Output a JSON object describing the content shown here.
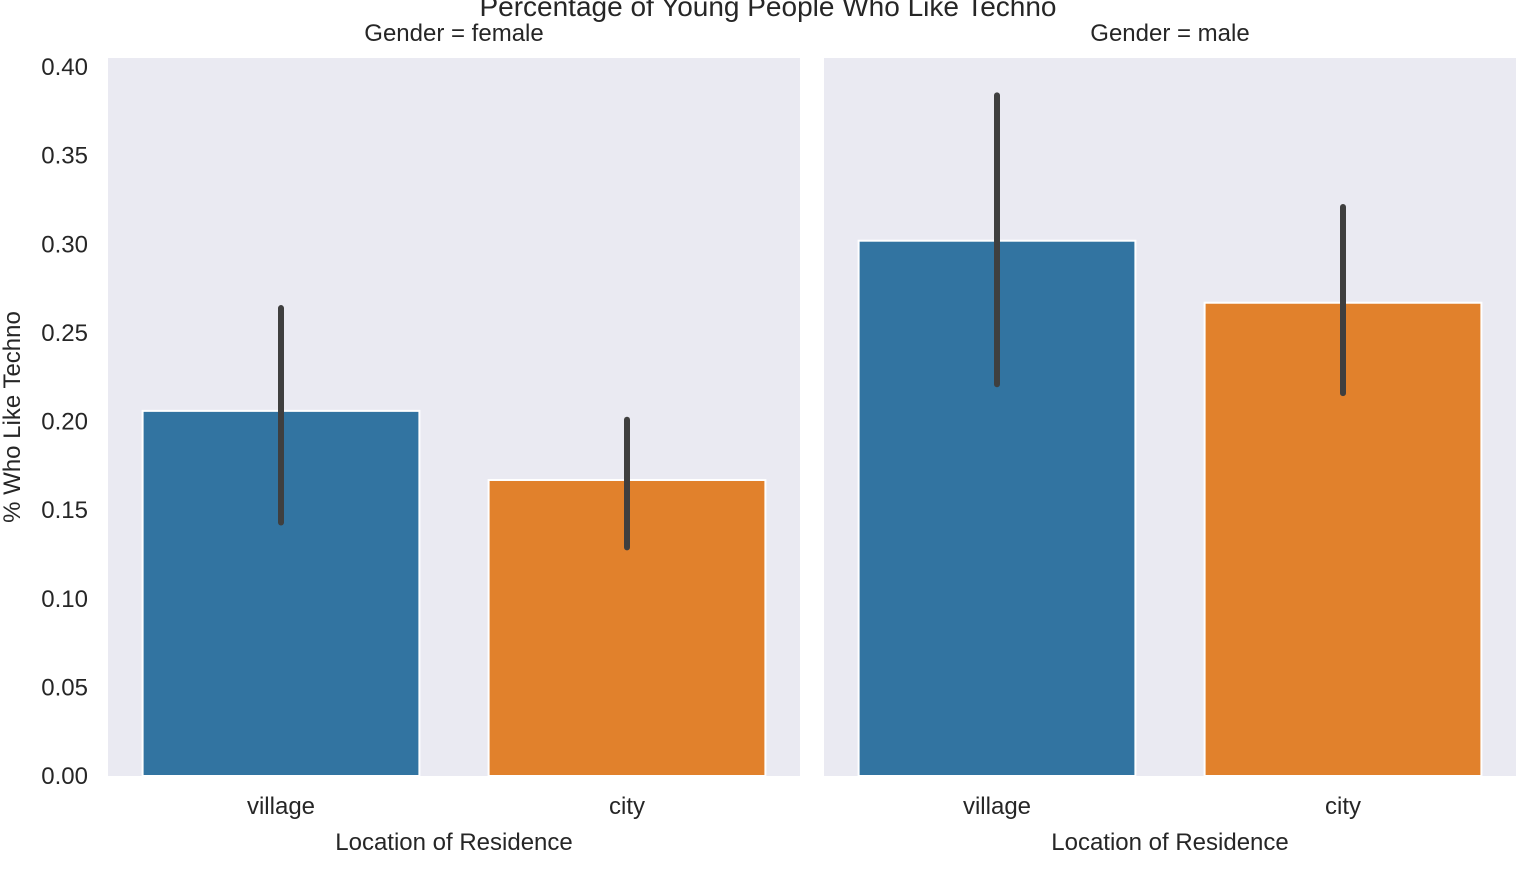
{
  "chart_data": {
    "type": "bar",
    "title": "Percentage of Young People Who Like Techno",
    "ylabel": "% Who Like Techno",
    "xlabel": "Location of Residence",
    "ylim": [
      0,
      0.4
    ],
    "yticks": [
      "0.00",
      "0.05",
      "0.10",
      "0.15",
      "0.20",
      "0.25",
      "0.30",
      "0.35",
      "0.40"
    ],
    "categories": [
      "village",
      "city"
    ],
    "colors": {
      "village": "#3274a1",
      "city": "#e1812c",
      "error_bar": "#3f3f3f",
      "panel_bg": "#eaeaf2"
    },
    "grid": false,
    "facets": [
      {
        "title": "Gender = female",
        "values": [
          0.206,
          0.167
        ],
        "ci": [
          [
            0.143,
            0.264
          ],
          [
            0.129,
            0.201
          ]
        ]
      },
      {
        "title": "Gender = male",
        "values": [
          0.302,
          0.267
        ],
        "ci": [
          [
            0.221,
            0.384
          ],
          [
            0.216,
            0.321
          ]
        ]
      }
    ]
  }
}
